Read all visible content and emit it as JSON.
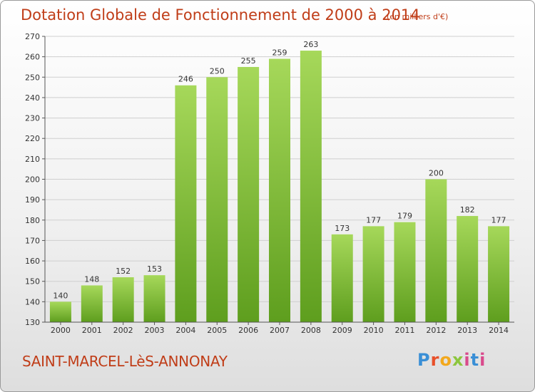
{
  "header": {
    "title": "Dotation Globale de Fonctionnement de 2000 à 2014",
    "subtitle": "(en milliers d'€)"
  },
  "footer": {
    "commune": "SAINT-MARCEL-LèS-ANNONAY",
    "logo": "Proxiti"
  },
  "colors": {
    "title": "#c03d18",
    "bar_light": "#a6d85a",
    "bar_dark": "#5e9e1e",
    "grid": "#cfcfcf"
  },
  "chart_data": {
    "type": "bar",
    "title": "Dotation Globale de Fonctionnement de 2000 à 2014",
    "xlabel": "",
    "ylabel": "",
    "categories": [
      "2000",
      "2001",
      "2002",
      "2003",
      "2004",
      "2005",
      "2006",
      "2007",
      "2008",
      "2009",
      "2010",
      "2011",
      "2012",
      "2013",
      "2014"
    ],
    "values": [
      140,
      148,
      152,
      153,
      246,
      250,
      255,
      259,
      263,
      173,
      177,
      179,
      200,
      182,
      177
    ],
    "ylim": [
      130,
      270
    ],
    "yticks": [
      130,
      140,
      150,
      160,
      170,
      180,
      190,
      200,
      210,
      220,
      230,
      240,
      250,
      260,
      270
    ],
    "grid": true,
    "data_labels": true
  }
}
